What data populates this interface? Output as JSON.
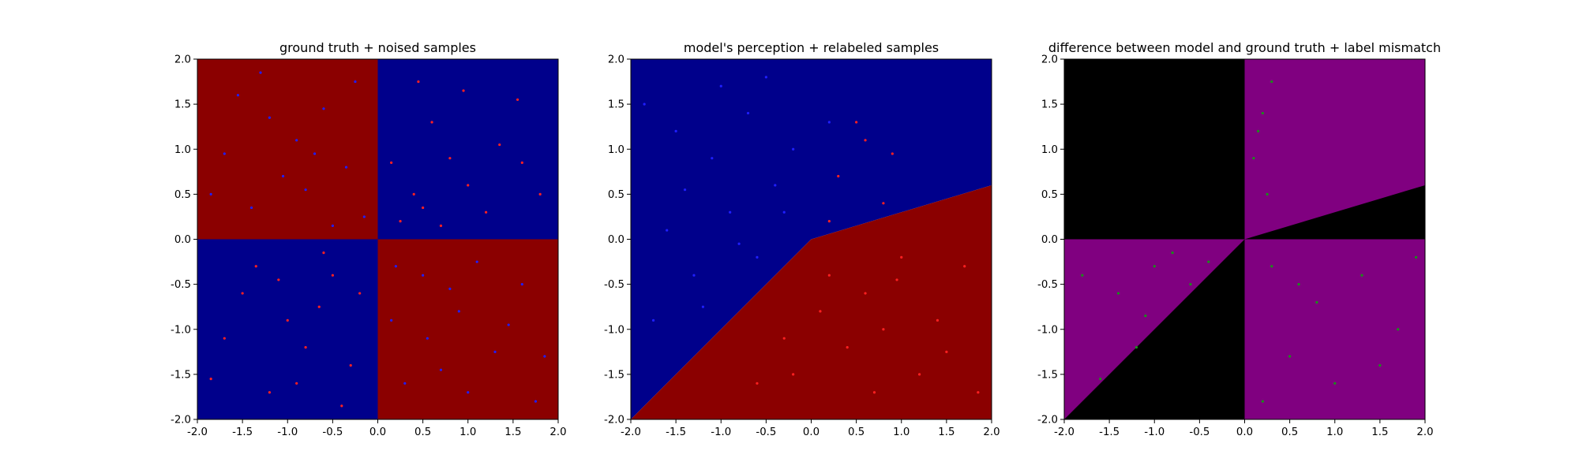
{
  "figure": {
    "background": "#ffffff"
  },
  "colors": {
    "deep_blue": "#00008b",
    "deep_red": "#8b0000",
    "point_blue": "#1f1fff",
    "point_red": "#ff2020",
    "black": "#000000",
    "purple": "#800080",
    "point_green": "#1a8f1a"
  },
  "chart_data": [
    {
      "type": "scatter",
      "title": "ground truth + noised samples",
      "xlim": [
        -2.0,
        2.0
      ],
      "ylim": [
        -2.0,
        2.0
      ],
      "x_ticks": [
        "-2.0",
        "-1.5",
        "-1.0",
        "-0.5",
        "0.0",
        "0.5",
        "1.0",
        "1.5",
        "2.0"
      ],
      "y_ticks": [
        "2.0",
        "1.5",
        "1.0",
        "0.5",
        "0.0",
        "-0.5",
        "-1.0",
        "-1.5",
        "-2.0"
      ],
      "background_regions": [
        {
          "name": "top-left",
          "x": [
            -2.0,
            0.0
          ],
          "y": [
            0.0,
            2.0
          ],
          "color": "deep_red"
        },
        {
          "name": "top-right",
          "x": [
            0.0,
            2.0
          ],
          "y": [
            0.0,
            2.0
          ],
          "color": "deep_blue"
        },
        {
          "name": "bottom-left",
          "x": [
            -2.0,
            0.0
          ],
          "y": [
            -2.0,
            0.0
          ],
          "color": "deep_blue"
        },
        {
          "name": "bottom-right",
          "x": [
            0.0,
            2.0
          ],
          "y": [
            -2.0,
            0.0
          ],
          "color": "deep_red"
        }
      ],
      "series": [
        {
          "color": "point_blue",
          "values": [
            [
              -1.55,
              1.6
            ],
            [
              -1.2,
              1.35
            ],
            [
              -0.9,
              1.1
            ],
            [
              -0.6,
              1.45
            ],
            [
              -0.35,
              0.8
            ],
            [
              -0.8,
              0.55
            ],
            [
              -1.4,
              0.35
            ],
            [
              -0.15,
              0.25
            ],
            [
              -1.7,
              0.95
            ],
            [
              -0.5,
              0.15
            ],
            [
              -1.05,
              0.7
            ],
            [
              -0.25,
              1.75
            ],
            [
              -1.85,
              0.5
            ],
            [
              -0.7,
              0.95
            ],
            [
              -1.3,
              1.85
            ],
            [
              0.5,
              -0.4
            ],
            [
              0.9,
              -0.8
            ],
            [
              1.3,
              -1.25
            ],
            [
              0.3,
              -1.6
            ],
            [
              1.6,
              -0.5
            ],
            [
              0.7,
              -1.45
            ],
            [
              1.1,
              -0.25
            ],
            [
              0.15,
              -0.9
            ],
            [
              1.75,
              -1.8
            ],
            [
              0.55,
              -1.1
            ],
            [
              1.45,
              -0.95
            ],
            [
              0.2,
              -0.3
            ],
            [
              1.0,
              -1.7
            ],
            [
              1.85,
              -1.3
            ],
            [
              0.8,
              -0.55
            ]
          ]
        },
        {
          "color": "point_red",
          "values": [
            [
              0.4,
              0.5
            ],
            [
              0.8,
              0.9
            ],
            [
              1.2,
              0.3
            ],
            [
              0.6,
              1.3
            ],
            [
              1.55,
              1.55
            ],
            [
              0.25,
              0.2
            ],
            [
              1.0,
              0.6
            ],
            [
              0.45,
              1.75
            ],
            [
              1.8,
              0.5
            ],
            [
              0.7,
              0.15
            ],
            [
              1.35,
              1.05
            ],
            [
              0.15,
              0.85
            ],
            [
              0.95,
              1.65
            ],
            [
              1.6,
              0.85
            ],
            [
              0.5,
              0.35
            ],
            [
              -0.5,
              -0.4
            ],
            [
              -1.0,
              -0.9
            ],
            [
              -0.3,
              -1.4
            ],
            [
              -1.5,
              -0.6
            ],
            [
              -0.8,
              -1.2
            ],
            [
              -1.2,
              -1.7
            ],
            [
              -0.2,
              -0.6
            ],
            [
              -1.7,
              -1.1
            ],
            [
              -0.6,
              -0.15
            ],
            [
              -0.9,
              -1.6
            ],
            [
              -1.35,
              -0.3
            ],
            [
              -0.4,
              -1.85
            ],
            [
              -1.85,
              -1.55
            ],
            [
              -0.65,
              -0.75
            ],
            [
              -1.1,
              -0.45
            ]
          ]
        }
      ]
    },
    {
      "type": "scatter",
      "title": "model's perception + relabeled samples",
      "xlim": [
        -2.0,
        2.0
      ],
      "ylim": [
        -2.0,
        2.0
      ],
      "x_ticks": [
        "-2.0",
        "-1.5",
        "-1.0",
        "-0.5",
        "0.0",
        "0.5",
        "1.0",
        "1.5",
        "2.0"
      ],
      "y_ticks": [
        "2.0",
        "1.5",
        "1.0",
        "0.5",
        "0.0",
        "-0.5",
        "-1.0",
        "-1.5",
        "-2.0"
      ],
      "background_polygons": [
        {
          "name": "above-boundary",
          "color": "deep_blue",
          "points": [
            [
              -2.0,
              -2.0
            ],
            [
              0.0,
              0.0
            ],
            [
              2.0,
              0.6
            ],
            [
              2.0,
              2.0
            ],
            [
              -2.0,
              2.0
            ]
          ]
        },
        {
          "name": "below-boundary",
          "color": "deep_red",
          "points": [
            [
              -2.0,
              -2.0
            ],
            [
              0.0,
              0.0
            ],
            [
              2.0,
              0.6
            ],
            [
              2.0,
              -2.0
            ]
          ]
        }
      ],
      "series": [
        {
          "color": "point_blue",
          "values": [
            [
              -1.5,
              1.2
            ],
            [
              -1.1,
              0.9
            ],
            [
              -0.7,
              1.4
            ],
            [
              -0.4,
              0.6
            ],
            [
              -0.9,
              0.3
            ],
            [
              -1.6,
              0.1
            ],
            [
              -0.2,
              1.0
            ],
            [
              -1.3,
              -0.4
            ],
            [
              -0.6,
              -0.2
            ],
            [
              -1.75,
              -0.9
            ],
            [
              -1.0,
              1.7
            ],
            [
              -0.3,
              0.3
            ],
            [
              -1.4,
              0.55
            ],
            [
              -0.8,
              -0.05
            ],
            [
              -1.2,
              -0.75
            ],
            [
              -0.5,
              1.8
            ],
            [
              -1.85,
              1.5
            ],
            [
              0.2,
              1.3
            ]
          ]
        },
        {
          "color": "point_red",
          "values": [
            [
              0.3,
              0.7
            ],
            [
              0.6,
              1.1
            ],
            [
              0.8,
              0.4
            ],
            [
              0.5,
              1.3
            ],
            [
              0.9,
              0.95
            ],
            [
              0.2,
              0.2
            ],
            [
              0.2,
              -0.4
            ],
            [
              0.6,
              -0.6
            ],
            [
              1.0,
              -0.2
            ],
            [
              1.4,
              -0.9
            ],
            [
              0.4,
              -1.2
            ],
            [
              1.2,
              -1.5
            ],
            [
              0.8,
              -1.0
            ],
            [
              1.7,
              -0.3
            ],
            [
              0.1,
              -0.8
            ],
            [
              -0.3,
              -1.1
            ],
            [
              0.7,
              -1.7
            ],
            [
              1.5,
              -1.25
            ],
            [
              -0.6,
              -1.6
            ],
            [
              0.95,
              -0.45
            ],
            [
              1.85,
              -1.7
            ],
            [
              -0.2,
              -1.5
            ]
          ]
        }
      ]
    },
    {
      "type": "scatter",
      "title": "difference between model and ground truth + label mismatch",
      "xlim": [
        -2.0,
        2.0
      ],
      "ylim": [
        -2.0,
        2.0
      ],
      "x_ticks": [
        "-2.0",
        "-1.5",
        "-1.0",
        "-0.5",
        "0.0",
        "0.5",
        "1.0",
        "1.5",
        "2.0"
      ],
      "y_ticks": [
        "2.0",
        "1.5",
        "1.0",
        "0.5",
        "0.0",
        "-0.5",
        "-1.0",
        "-1.5",
        "-2.0"
      ],
      "background_polygons": [
        {
          "name": "base-black",
          "color": "black",
          "points": [
            [
              -2.0,
              -2.0
            ],
            [
              2.0,
              -2.0
            ],
            [
              2.0,
              2.0
            ],
            [
              -2.0,
              2.0
            ]
          ]
        },
        {
          "name": "top-right-purple",
          "color": "purple",
          "points": [
            [
              0.0,
              0.0
            ],
            [
              2.0,
              0.6
            ],
            [
              2.0,
              2.0
            ],
            [
              0.0,
              2.0
            ]
          ]
        },
        {
          "name": "bottom-left-purple",
          "color": "purple",
          "points": [
            [
              -2.0,
              -2.0
            ],
            [
              0.0,
              0.0
            ],
            [
              -2.0,
              0.0
            ]
          ]
        },
        {
          "name": "bottom-right-purple",
          "color": "purple",
          "points": [
            [
              0.0,
              0.0
            ],
            [
              2.0,
              0.0
            ],
            [
              2.0,
              -2.0
            ],
            [
              0.0,
              -2.0
            ]
          ]
        }
      ],
      "series": [
        {
          "color": "point_green",
          "values": [
            [
              0.3,
              1.75
            ],
            [
              0.2,
              1.4
            ],
            [
              0.1,
              0.9
            ],
            [
              0.25,
              0.5
            ],
            [
              0.15,
              1.2
            ],
            [
              -1.8,
              -0.4
            ],
            [
              -1.4,
              -0.6
            ],
            [
              -1.0,
              -0.3
            ],
            [
              -0.6,
              -0.5
            ],
            [
              -1.2,
              -1.2
            ],
            [
              -0.8,
              -0.15
            ],
            [
              -1.6,
              -1.55
            ],
            [
              -0.4,
              -0.25
            ],
            [
              -1.1,
              -0.85
            ],
            [
              0.3,
              -0.3
            ],
            [
              0.8,
              -0.7
            ],
            [
              1.3,
              -0.4
            ],
            [
              0.5,
              -1.3
            ],
            [
              1.0,
              -1.6
            ],
            [
              1.7,
              -1.0
            ],
            [
              0.2,
              -1.8
            ],
            [
              1.5,
              -1.4
            ],
            [
              0.6,
              -0.5
            ],
            [
              1.9,
              -0.2
            ]
          ]
        }
      ]
    }
  ]
}
